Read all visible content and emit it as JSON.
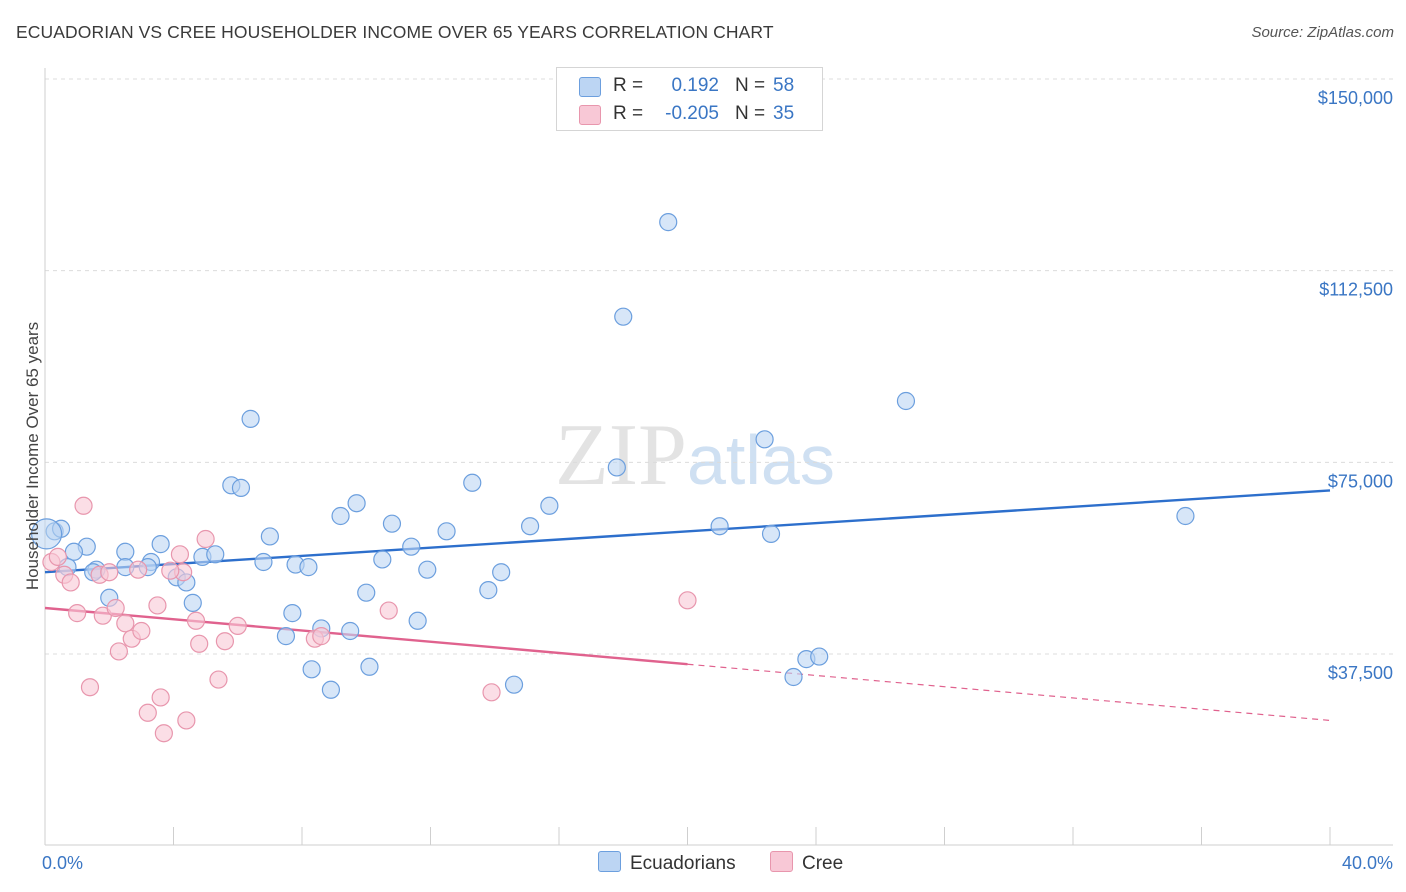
{
  "header": {
    "title": "ECUADORIAN VS CREE HOUSEHOLDER INCOME OVER 65 YEARS CORRELATION CHART",
    "source": "Source: ZipAtlas.com"
  },
  "watermark": {
    "zip": "ZIP",
    "atlas": "atlas"
  },
  "legend": {
    "rows": [
      {
        "r_label": "R =",
        "r_value": "0.192",
        "n_label": "N =",
        "n_value": "58"
      },
      {
        "r_label": "R =",
        "r_value": "-0.205",
        "n_label": "N =",
        "n_value": "35"
      }
    ],
    "bottom": [
      "Ecuadorians",
      "Cree"
    ]
  },
  "colors": {
    "blue_fill": "#bcd5f3",
    "blue_stroke": "#6c9fde",
    "blue_line": "#2d6fcc",
    "pink_fill": "#f8c8d6",
    "pink_stroke": "#e896ad",
    "pink_line": "#e0628e",
    "grid": "#dcdcdc",
    "tick_text": "#3a76c4"
  },
  "chart_data": {
    "type": "scatter",
    "ylabel": "Householder Income Over 65 years",
    "x_tick_labels": [
      "0.0%",
      "40.0%"
    ],
    "y_tick_labels": [
      "$37,500",
      "$75,000",
      "$112,500",
      "$150,000"
    ],
    "xlim": [
      0,
      40
    ],
    "ylim": [
      0,
      150000
    ],
    "yticks": [
      37500,
      75000,
      112500,
      150000
    ],
    "grid": true,
    "legend_position": "top-center",
    "series": [
      {
        "name": "Ecuadorians",
        "color": "#6c9fde",
        "r": 0.192,
        "n": 58,
        "trend": {
          "x": [
            0,
            40
          ],
          "y": [
            53500,
            69500
          ]
        },
        "points": [
          [
            0.3,
            61500
          ],
          [
            0.5,
            62000
          ],
          [
            1.3,
            58500
          ],
          [
            0.9,
            57500
          ],
          [
            1.6,
            54000
          ],
          [
            2.0,
            48500
          ],
          [
            2.5,
            57500
          ],
          [
            2.5,
            54500
          ],
          [
            3.3,
            55500
          ],
          [
            3.6,
            59000
          ],
          [
            4.1,
            52500
          ],
          [
            4.4,
            51500
          ],
          [
            4.6,
            47500
          ],
          [
            4.9,
            56500
          ],
          [
            5.3,
            57000
          ],
          [
            5.8,
            70500
          ],
          [
            6.1,
            70000
          ],
          [
            6.4,
            83500
          ],
          [
            6.8,
            55500
          ],
          [
            7.0,
            60500
          ],
          [
            7.5,
            41000
          ],
          [
            7.7,
            45500
          ],
          [
            7.8,
            55000
          ],
          [
            8.2,
            54500
          ],
          [
            8.3,
            34500
          ],
          [
            8.6,
            42500
          ],
          [
            8.9,
            30500
          ],
          [
            9.2,
            64500
          ],
          [
            9.5,
            42000
          ],
          [
            9.7,
            67000
          ],
          [
            10.0,
            49500
          ],
          [
            10.1,
            35000
          ],
          [
            10.5,
            56000
          ],
          [
            10.8,
            63000
          ],
          [
            11.4,
            58500
          ],
          [
            11.6,
            44000
          ],
          [
            11.9,
            54000
          ],
          [
            12.5,
            61500
          ],
          [
            13.3,
            71000
          ],
          [
            13.8,
            50000
          ],
          [
            14.2,
            53500
          ],
          [
            14.6,
            31500
          ],
          [
            15.1,
            62500
          ],
          [
            15.7,
            66500
          ],
          [
            17.8,
            74000
          ],
          [
            18.0,
            103500
          ],
          [
            19.4,
            122000
          ],
          [
            21.0,
            62500
          ],
          [
            22.4,
            79500
          ],
          [
            22.6,
            61000
          ],
          [
            23.3,
            33000
          ],
          [
            23.7,
            36500
          ],
          [
            24.1,
            37000
          ],
          [
            26.8,
            87000
          ],
          [
            35.5,
            64500
          ],
          [
            0.7,
            54500
          ],
          [
            1.5,
            53500
          ],
          [
            3.2,
            54500
          ]
        ]
      },
      {
        "name": "Cree",
        "color": "#e896ad",
        "r": -0.205,
        "n": 35,
        "trend": {
          "x": [
            0,
            20
          ],
          "y": [
            46500,
            35500
          ]
        },
        "trend_dashed": {
          "x": [
            20,
            40
          ],
          "y": [
            35500,
            24500
          ]
        },
        "points": [
          [
            0.2,
            55500
          ],
          [
            0.4,
            56500
          ],
          [
            0.6,
            53000
          ],
          [
            0.8,
            51500
          ],
          [
            1.0,
            45500
          ],
          [
            1.2,
            66500
          ],
          [
            1.4,
            31000
          ],
          [
            1.7,
            53000
          ],
          [
            1.8,
            45000
          ],
          [
            2.0,
            53500
          ],
          [
            2.2,
            46500
          ],
          [
            2.3,
            38000
          ],
          [
            2.5,
            43500
          ],
          [
            2.7,
            40500
          ],
          [
            2.9,
            54000
          ],
          [
            3.0,
            42000
          ],
          [
            3.2,
            26000
          ],
          [
            3.5,
            47000
          ],
          [
            3.6,
            29000
          ],
          [
            3.7,
            22000
          ],
          [
            4.2,
            57000
          ],
          [
            4.3,
            53500
          ],
          [
            4.4,
            24500
          ],
          [
            4.7,
            44000
          ],
          [
            4.8,
            39500
          ],
          [
            5.0,
            60000
          ],
          [
            5.4,
            32500
          ],
          [
            5.6,
            40000
          ],
          [
            6.0,
            43000
          ],
          [
            8.4,
            40500
          ],
          [
            8.6,
            41000
          ],
          [
            10.7,
            46000
          ],
          [
            13.9,
            30000
          ],
          [
            20.0,
            48000
          ],
          [
            3.9,
            53800
          ]
        ]
      }
    ]
  }
}
